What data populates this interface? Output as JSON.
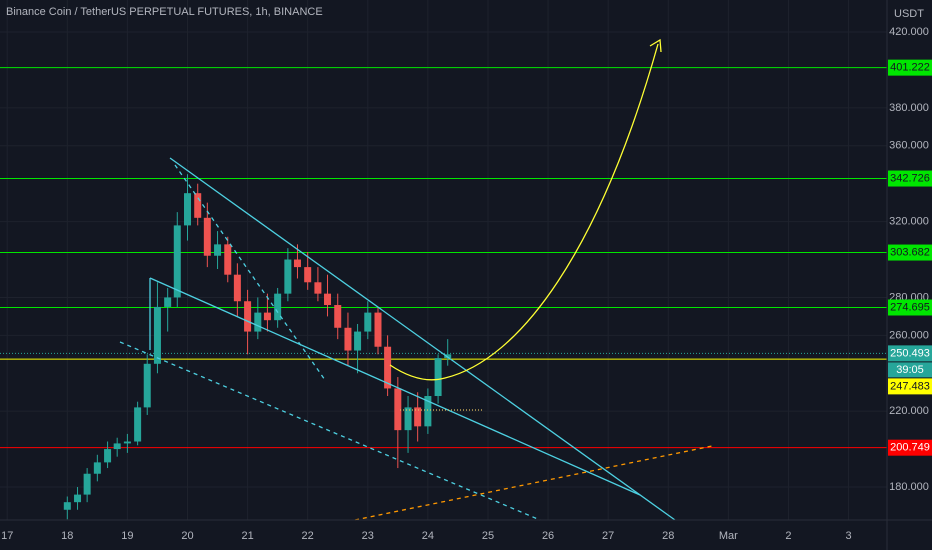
{
  "chart_data": {
    "type": "candlestick",
    "title": "Binance Coin / TetherUS PERPETUAL FUTURES, 1h, BINANCE",
    "unit": "USDT",
    "x": [
      18,
      18.17,
      18.33,
      18.5,
      18.67,
      18.83,
      19,
      19.17,
      19.33,
      19.5,
      19.67,
      19.83,
      20,
      20.17,
      20.33,
      20.5,
      20.67,
      20.83,
      21,
      21.17,
      21.33,
      21.5,
      21.67,
      21.83,
      22,
      22.17,
      22.33,
      22.5,
      22.67,
      22.83,
      23,
      23.17,
      23.33,
      23.5,
      23.67,
      23.83,
      24,
      24.17,
      24.33
    ],
    "open": [
      168,
      172,
      176,
      187,
      193,
      200,
      203,
      204,
      222,
      245,
      275,
      280,
      318,
      335,
      322,
      302,
      308,
      292,
      278,
      262,
      272,
      268,
      282,
      300,
      296,
      288,
      282,
      276,
      264,
      252,
      262,
      272,
      254,
      232,
      210,
      222,
      212,
      228,
      248
    ],
    "high": [
      175,
      180,
      190,
      197,
      204,
      206,
      208,
      225,
      250,
      288,
      285,
      325,
      345,
      340,
      330,
      315,
      312,
      298,
      284,
      280,
      282,
      285,
      306,
      308,
      304,
      296,
      292,
      282,
      272,
      266,
      278,
      275,
      260,
      238,
      228,
      230,
      232,
      250,
      258
    ],
    "low": [
      163,
      168,
      172,
      183,
      190,
      196,
      198,
      202,
      218,
      240,
      262,
      275,
      310,
      318,
      296,
      295,
      288,
      270,
      250,
      258,
      262,
      264,
      278,
      290,
      284,
      278,
      270,
      258,
      244,
      240,
      258,
      250,
      228,
      190,
      198,
      204,
      208,
      224,
      244
    ],
    "close": [
      172,
      176,
      187,
      193,
      200,
      203,
      204,
      222,
      245,
      275,
      280,
      318,
      335,
      322,
      302,
      308,
      292,
      278,
      262,
      272,
      268,
      282,
      300,
      296,
      288,
      282,
      276,
      264,
      252,
      262,
      272,
      254,
      232,
      210,
      222,
      212,
      228,
      248,
      250
    ],
    "up_color": "#26a69a",
    "down_color": "#ef5350",
    "xlim": [
      16.88,
      31.64
    ],
    "xticks": [
      17,
      18,
      19,
      20,
      21,
      22,
      23,
      24,
      25,
      26,
      27,
      28,
      {
        "value": 29,
        "label": "Mar"
      },
      {
        "value": 30,
        "label": "2"
      },
      {
        "value": 31,
        "label": "3"
      }
    ],
    "ylim": [
      162.6,
      436.9
    ],
    "yticks": [
      {
        "value": 180,
        "label": "180.000"
      },
      {
        "value": 220,
        "label": "220.000"
      },
      {
        "value": 260,
        "label": "260.000"
      },
      {
        "value": 280,
        "label": "280.000"
      },
      {
        "value": 320,
        "label": "320.000"
      },
      {
        "value": 360,
        "label": "360.000"
      },
      {
        "value": 380,
        "label": "380.000"
      },
      {
        "value": 420,
        "label": "420.000"
      }
    ],
    "grid": true,
    "levels": [
      {
        "value": 401.222,
        "color": "#00e600"
      },
      {
        "value": 342.726,
        "color": "#00e600"
      },
      {
        "value": 303.682,
        "color": "#00e600"
      },
      {
        "value": 274.695,
        "color": "#00e600"
      },
      {
        "value": 247.483,
        "color": "#ffff00"
      },
      {
        "value": 200.749,
        "color": "#ff0000"
      }
    ],
    "last_price": 250.493,
    "last_price_color": "#26a69a",
    "countdown": "39:05"
  }
}
